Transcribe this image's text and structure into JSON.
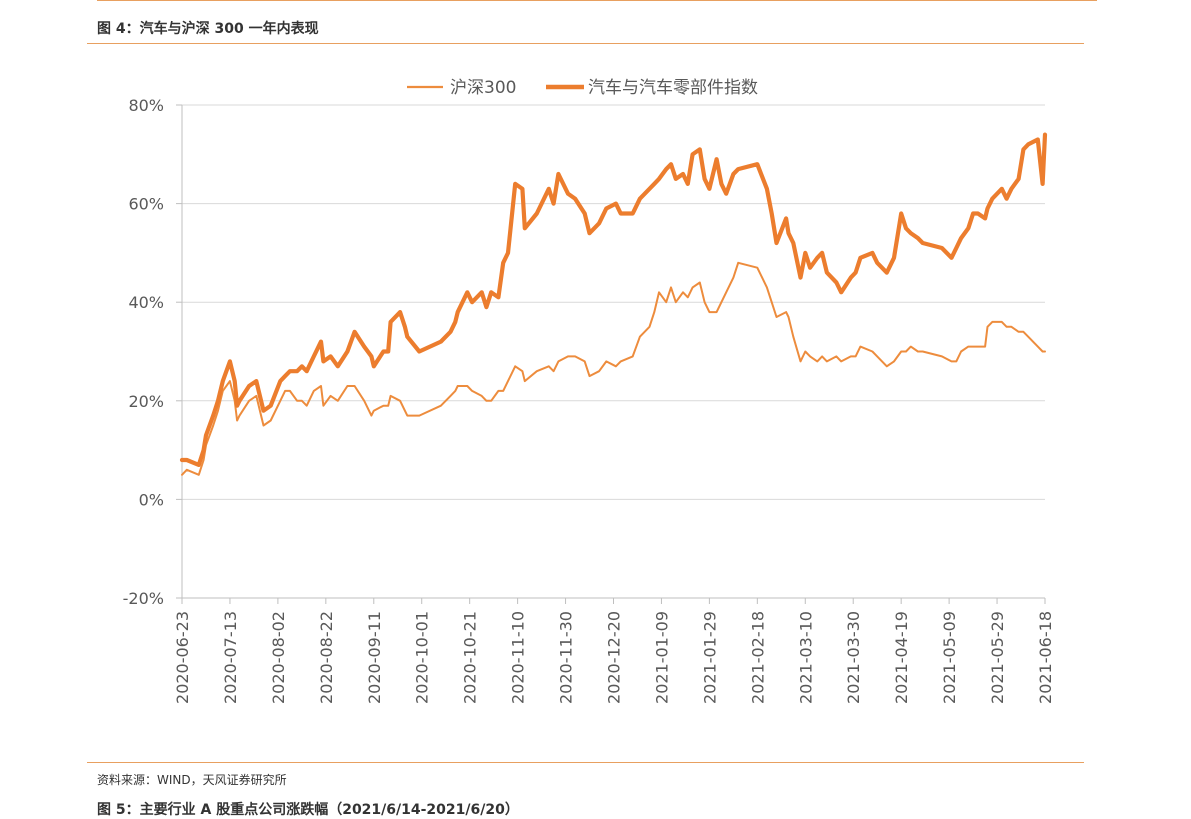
{
  "page": {
    "figure_title": "图 4：汽车与沪深 300 一年内表现",
    "source_note": "资料来源：WIND，天风证券研究所",
    "next_figure_title": "图 5：主要行业 A 股重点公司涨跌幅（2021/6/14-2021/6/20）"
  },
  "chart_data": {
    "type": "line",
    "title": "",
    "xlabel": "",
    "ylabel": "",
    "ylim": [
      -20,
      80
    ],
    "yticks": [
      -20,
      0,
      20,
      40,
      60,
      80
    ],
    "ytick_labels": [
      "-20%",
      "0%",
      "20%",
      "40%",
      "60%",
      "80%"
    ],
    "x_range": [
      "2020-06-23",
      "2021-06-18"
    ],
    "xtick_labels": [
      "2020-06-23",
      "2020-07-13",
      "2020-08-02",
      "2020-08-22",
      "2020-09-11",
      "2020-10-01",
      "2020-10-21",
      "2020-11-10",
      "2020-11-30",
      "2020-12-20",
      "2021-01-09",
      "2021-01-29",
      "2021-02-18",
      "2021-03-10",
      "2021-03-30",
      "2021-04-19",
      "2021-05-09",
      "2021-05-29",
      "2021-06-18"
    ],
    "grid": "horizontal",
    "legend_position": "top",
    "colors": {
      "hs300": "#ed8c3d",
      "auto": "#ec7d2e",
      "grid": "#d9d9d9",
      "axis": "#bfbfbf"
    },
    "series": [
      {
        "name": "沪深300",
        "style": "thin",
        "points": [
          [
            "2020-06-23",
            5
          ],
          [
            "2020-06-25",
            6
          ],
          [
            "2020-06-30",
            5
          ],
          [
            "2020-07-02",
            8
          ],
          [
            "2020-07-03",
            11
          ],
          [
            "2020-07-06",
            15
          ],
          [
            "2020-07-08",
            18
          ],
          [
            "2020-07-10",
            22
          ],
          [
            "2020-07-13",
            24
          ],
          [
            "2020-07-15",
            20
          ],
          [
            "2020-07-16",
            16
          ],
          [
            "2020-07-17",
            17
          ],
          [
            "2020-07-21",
            20
          ],
          [
            "2020-07-24",
            21
          ],
          [
            "2020-07-27",
            15
          ],
          [
            "2020-07-30",
            16
          ],
          [
            "2020-08-03",
            20
          ],
          [
            "2020-08-05",
            22
          ],
          [
            "2020-08-07",
            22
          ],
          [
            "2020-08-10",
            20
          ],
          [
            "2020-08-12",
            20
          ],
          [
            "2020-08-14",
            19
          ],
          [
            "2020-08-17",
            22
          ],
          [
            "2020-08-20",
            23
          ],
          [
            "2020-08-21",
            19
          ],
          [
            "2020-08-24",
            21
          ],
          [
            "2020-08-27",
            20
          ],
          [
            "2020-08-31",
            23
          ],
          [
            "2020-09-03",
            23
          ],
          [
            "2020-09-07",
            20
          ],
          [
            "2020-09-10",
            17
          ],
          [
            "2020-09-11",
            18
          ],
          [
            "2020-09-15",
            19
          ],
          [
            "2020-09-17",
            19
          ],
          [
            "2020-09-18",
            21
          ],
          [
            "2020-09-22",
            20
          ],
          [
            "2020-09-24",
            18
          ],
          [
            "2020-09-25",
            17
          ],
          [
            "2020-09-30",
            17
          ],
          [
            "2020-10-09",
            19
          ],
          [
            "2020-10-13",
            21
          ],
          [
            "2020-10-15",
            22
          ],
          [
            "2020-10-16",
            23
          ],
          [
            "2020-10-20",
            23
          ],
          [
            "2020-10-22",
            22
          ],
          [
            "2020-10-26",
            21
          ],
          [
            "2020-10-28",
            20
          ],
          [
            "2020-10-30",
            20
          ],
          [
            "2020-11-02",
            22
          ],
          [
            "2020-11-04",
            22
          ],
          [
            "2020-11-06",
            24
          ],
          [
            "2020-11-09",
            27
          ],
          [
            "2020-11-12",
            26
          ],
          [
            "2020-11-13",
            24
          ],
          [
            "2020-11-18",
            26
          ],
          [
            "2020-11-23",
            27
          ],
          [
            "2020-11-25",
            26
          ],
          [
            "2020-11-27",
            28
          ],
          [
            "2020-12-01",
            29
          ],
          [
            "2020-12-04",
            29
          ],
          [
            "2020-12-08",
            28
          ],
          [
            "2020-12-10",
            25
          ],
          [
            "2020-12-14",
            26
          ],
          [
            "2020-12-17",
            28
          ],
          [
            "2020-12-21",
            27
          ],
          [
            "2020-12-23",
            28
          ],
          [
            "2020-12-28",
            29
          ],
          [
            "2020-12-31",
            33
          ],
          [
            "2021-01-04",
            35
          ],
          [
            "2021-01-06",
            38
          ],
          [
            "2021-01-08",
            42
          ],
          [
            "2021-01-11",
            40
          ],
          [
            "2021-01-13",
            43
          ],
          [
            "2021-01-15",
            40
          ],
          [
            "2021-01-18",
            42
          ],
          [
            "2021-01-20",
            41
          ],
          [
            "2021-01-22",
            43
          ],
          [
            "2021-01-25",
            44
          ],
          [
            "2021-01-27",
            40
          ],
          [
            "2021-01-29",
            38
          ],
          [
            "2021-02-01",
            38
          ],
          [
            "2021-02-03",
            40
          ],
          [
            "2021-02-05",
            42
          ],
          [
            "2021-02-08",
            45
          ],
          [
            "2021-02-10",
            48
          ],
          [
            "2021-02-18",
            47
          ],
          [
            "2021-02-22",
            43
          ],
          [
            "2021-02-24",
            40
          ],
          [
            "2021-02-26",
            37
          ],
          [
            "2021-03-02",
            38
          ],
          [
            "2021-03-03",
            37
          ],
          [
            "2021-03-05",
            33
          ],
          [
            "2021-03-08",
            28
          ],
          [
            "2021-03-10",
            30
          ],
          [
            "2021-03-12",
            29
          ],
          [
            "2021-03-15",
            28
          ],
          [
            "2021-03-17",
            29
          ],
          [
            "2021-03-19",
            28
          ],
          [
            "2021-03-23",
            29
          ],
          [
            "2021-03-25",
            28
          ],
          [
            "2021-03-29",
            29
          ],
          [
            "2021-03-31",
            29
          ],
          [
            "2021-04-02",
            31
          ],
          [
            "2021-04-07",
            30
          ],
          [
            "2021-04-09",
            29
          ],
          [
            "2021-04-13",
            27
          ],
          [
            "2021-04-16",
            28
          ],
          [
            "2021-04-19",
            30
          ],
          [
            "2021-04-21",
            30
          ],
          [
            "2021-04-23",
            31
          ],
          [
            "2021-04-26",
            30
          ],
          [
            "2021-04-28",
            30
          ],
          [
            "2021-05-06",
            29
          ],
          [
            "2021-05-10",
            28
          ],
          [
            "2021-05-12",
            28
          ],
          [
            "2021-05-14",
            30
          ],
          [
            "2021-05-17",
            31
          ],
          [
            "2021-05-19",
            31
          ],
          [
            "2021-05-21",
            31
          ],
          [
            "2021-05-24",
            31
          ],
          [
            "2021-05-25",
            35
          ],
          [
            "2021-05-27",
            36
          ],
          [
            "2021-05-31",
            36
          ],
          [
            "2021-06-02",
            35
          ],
          [
            "2021-06-04",
            35
          ],
          [
            "2021-06-07",
            34
          ],
          [
            "2021-06-09",
            34
          ],
          [
            "2021-06-11",
            33
          ],
          [
            "2021-06-15",
            31
          ],
          [
            "2021-06-17",
            30
          ],
          [
            "2021-06-18",
            30
          ]
        ]
      },
      {
        "name": "汽车与汽车零部件指数",
        "style": "thick",
        "points": [
          [
            "2020-06-23",
            8
          ],
          [
            "2020-06-25",
            8
          ],
          [
            "2020-06-30",
            7
          ],
          [
            "2020-07-02",
            10
          ],
          [
            "2020-07-03",
            13
          ],
          [
            "2020-07-06",
            17
          ],
          [
            "2020-07-08",
            20
          ],
          [
            "2020-07-10",
            24
          ],
          [
            "2020-07-13",
            28
          ],
          [
            "2020-07-15",
            24
          ],
          [
            "2020-07-16",
            19
          ],
          [
            "2020-07-17",
            20
          ],
          [
            "2020-07-21",
            23
          ],
          [
            "2020-07-24",
            24
          ],
          [
            "2020-07-27",
            18
          ],
          [
            "2020-07-30",
            19
          ],
          [
            "2020-08-03",
            24
          ],
          [
            "2020-08-05",
            25
          ],
          [
            "2020-08-07",
            26
          ],
          [
            "2020-08-10",
            26
          ],
          [
            "2020-08-12",
            27
          ],
          [
            "2020-08-14",
            26
          ],
          [
            "2020-08-17",
            29
          ],
          [
            "2020-08-20",
            32
          ],
          [
            "2020-08-21",
            28
          ],
          [
            "2020-08-24",
            29
          ],
          [
            "2020-08-27",
            27
          ],
          [
            "2020-08-31",
            30
          ],
          [
            "2020-09-03",
            34
          ],
          [
            "2020-09-07",
            31
          ],
          [
            "2020-09-10",
            29
          ],
          [
            "2020-09-11",
            27
          ],
          [
            "2020-09-15",
            30
          ],
          [
            "2020-09-17",
            30
          ],
          [
            "2020-09-18",
            36
          ],
          [
            "2020-09-22",
            38
          ],
          [
            "2020-09-24",
            35
          ],
          [
            "2020-09-25",
            33
          ],
          [
            "2020-09-30",
            30
          ],
          [
            "2020-10-09",
            32
          ],
          [
            "2020-10-13",
            34
          ],
          [
            "2020-10-15",
            36
          ],
          [
            "2020-10-16",
            38
          ],
          [
            "2020-10-20",
            42
          ],
          [
            "2020-10-22",
            40
          ],
          [
            "2020-10-26",
            42
          ],
          [
            "2020-10-28",
            39
          ],
          [
            "2020-10-30",
            42
          ],
          [
            "2020-11-02",
            41
          ],
          [
            "2020-11-04",
            48
          ],
          [
            "2020-11-06",
            50
          ],
          [
            "2020-11-09",
            64
          ],
          [
            "2020-11-12",
            63
          ],
          [
            "2020-11-13",
            55
          ],
          [
            "2020-11-18",
            58
          ],
          [
            "2020-11-23",
            63
          ],
          [
            "2020-11-25",
            60
          ],
          [
            "2020-11-27",
            66
          ],
          [
            "2020-12-01",
            62
          ],
          [
            "2020-12-04",
            61
          ],
          [
            "2020-12-08",
            58
          ],
          [
            "2020-12-10",
            54
          ],
          [
            "2020-12-14",
            56
          ],
          [
            "2020-12-17",
            59
          ],
          [
            "2020-12-21",
            60
          ],
          [
            "2020-12-23",
            58
          ],
          [
            "2020-12-28",
            58
          ],
          [
            "2020-12-31",
            61
          ],
          [
            "2021-01-04",
            63
          ],
          [
            "2021-01-06",
            64
          ],
          [
            "2021-01-08",
            65
          ],
          [
            "2021-01-11",
            67
          ],
          [
            "2021-01-13",
            68
          ],
          [
            "2021-01-15",
            65
          ],
          [
            "2021-01-18",
            66
          ],
          [
            "2021-01-20",
            64
          ],
          [
            "2021-01-22",
            70
          ],
          [
            "2021-01-25",
            71
          ],
          [
            "2021-01-27",
            65
          ],
          [
            "2021-01-29",
            63
          ],
          [
            "2021-02-01",
            69
          ],
          [
            "2021-02-03",
            64
          ],
          [
            "2021-02-05",
            62
          ],
          [
            "2021-02-08",
            66
          ],
          [
            "2021-02-10",
            67
          ],
          [
            "2021-02-18",
            68
          ],
          [
            "2021-02-22",
            63
          ],
          [
            "2021-02-24",
            58
          ],
          [
            "2021-02-26",
            52
          ],
          [
            "2021-03-02",
            57
          ],
          [
            "2021-03-03",
            54
          ],
          [
            "2021-03-05",
            52
          ],
          [
            "2021-03-08",
            45
          ],
          [
            "2021-03-10",
            50
          ],
          [
            "2021-03-12",
            47
          ],
          [
            "2021-03-15",
            49
          ],
          [
            "2021-03-17",
            50
          ],
          [
            "2021-03-19",
            46
          ],
          [
            "2021-03-23",
            44
          ],
          [
            "2021-03-25",
            42
          ],
          [
            "2021-03-29",
            45
          ],
          [
            "2021-03-31",
            46
          ],
          [
            "2021-04-02",
            49
          ],
          [
            "2021-04-07",
            50
          ],
          [
            "2021-04-09",
            48
          ],
          [
            "2021-04-13",
            46
          ],
          [
            "2021-04-16",
            49
          ],
          [
            "2021-04-19",
            58
          ],
          [
            "2021-04-21",
            55
          ],
          [
            "2021-04-23",
            54
          ],
          [
            "2021-04-26",
            53
          ],
          [
            "2021-04-28",
            52
          ],
          [
            "2021-05-06",
            51
          ],
          [
            "2021-05-10",
            49
          ],
          [
            "2021-05-12",
            51
          ],
          [
            "2021-05-14",
            53
          ],
          [
            "2021-05-17",
            55
          ],
          [
            "2021-05-19",
            58
          ],
          [
            "2021-05-21",
            58
          ],
          [
            "2021-05-24",
            57
          ],
          [
            "2021-05-25",
            59
          ],
          [
            "2021-05-27",
            61
          ],
          [
            "2021-05-31",
            63
          ],
          [
            "2021-06-02",
            61
          ],
          [
            "2021-06-04",
            63
          ],
          [
            "2021-06-07",
            65
          ],
          [
            "2021-06-09",
            71
          ],
          [
            "2021-06-11",
            72
          ],
          [
            "2021-06-15",
            73
          ],
          [
            "2021-06-17",
            64
          ],
          [
            "2021-06-18",
            74
          ]
        ]
      }
    ]
  }
}
